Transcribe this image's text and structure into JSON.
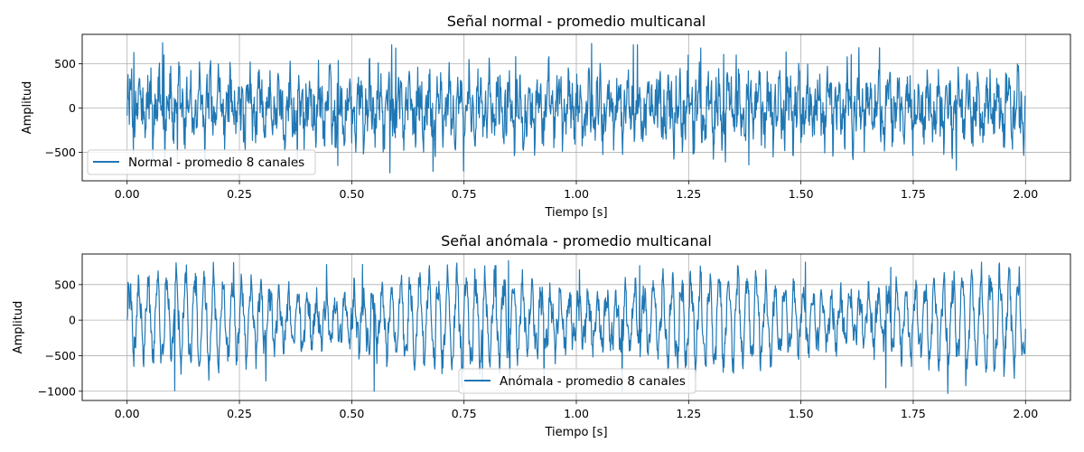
{
  "colors": {
    "line": "#1f77b4",
    "grid": "#b0b0b0",
    "frame": "#000000"
  },
  "chart_data": [
    {
      "type": "line",
      "title": "Señal normal - promedio multicanal",
      "xlabel": "Tiempo [s]",
      "ylabel": "Amplitud",
      "xlim": [
        -0.1,
        2.1
      ],
      "ylim": [
        -820,
        830
      ],
      "xticks": [
        0.0,
        0.25,
        0.5,
        0.75,
        1.0,
        1.25,
        1.5,
        1.75,
        2.0
      ],
      "xtick_labels": [
        "0.00",
        "0.25",
        "0.50",
        "0.75",
        "1.00",
        "1.25",
        "1.50",
        "1.75",
        "2.00"
      ],
      "yticks": [
        -500,
        0,
        500
      ],
      "ytick_labels": [
        "−500",
        "0",
        "500"
      ],
      "grid": true,
      "legend_position": "lower-left",
      "series": [
        {
          "name": "Normal - promedio 8 canales",
          "x_range": [
            0.0,
            2.0
          ],
          "envelope": {
            "typical_peak": 450,
            "max": 760,
            "min": -780
          }
        }
      ]
    },
    {
      "type": "line",
      "title": "Señal anómala - promedio multicanal",
      "xlabel": "Tiempo [s]",
      "ylabel": "Amplitud",
      "xlim": [
        -0.1,
        2.1
      ],
      "ylim": [
        -1130,
        930
      ],
      "xticks": [
        0.0,
        0.25,
        0.5,
        0.75,
        1.0,
        1.25,
        1.5,
        1.75,
        2.0
      ],
      "xtick_labels": [
        "0.00",
        "0.25",
        "0.50",
        "0.75",
        "1.00",
        "1.25",
        "1.50",
        "1.75",
        "2.00"
      ],
      "yticks": [
        -1000,
        -500,
        0,
        500
      ],
      "ytick_labels": [
        "−1000",
        "−500",
        "0",
        "500"
      ],
      "grid": true,
      "legend_position": "lower-center",
      "series": [
        {
          "name": "Anómala - promedio 8 canales",
          "x_range": [
            0.0,
            2.0
          ],
          "envelope": {
            "typical_peak": 650,
            "max": 860,
            "min": -1060
          }
        }
      ]
    }
  ]
}
